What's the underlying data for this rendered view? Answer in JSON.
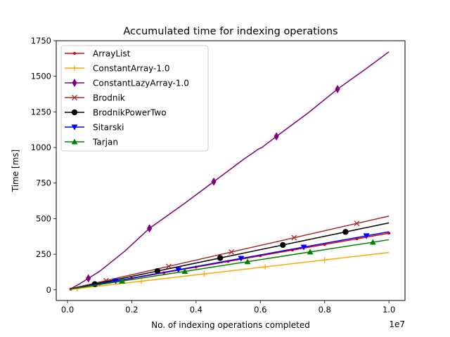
{
  "chart_data": {
    "type": "line",
    "title": "Accumulated time for indexing operations",
    "xlabel": "No. of indexing operations completed",
    "ylabel": "Time [ms]",
    "x_offset_text": "1e7",
    "xlim": [
      -0.35,
      10.5
    ],
    "ylim": [
      -75,
      1750
    ],
    "x_ticks": [
      0.0,
      0.2,
      0.4,
      0.6,
      0.8,
      1.0
    ],
    "x_tick_labels": [
      "0.0",
      "0.2",
      "0.4",
      "0.6",
      "0.8",
      "1.0"
    ],
    "y_ticks": [
      0,
      250,
      500,
      750,
      1000,
      1250,
      1500,
      1750
    ],
    "y_tick_labels": [
      "0",
      "250",
      "500",
      "750",
      "1000",
      "1250",
      "1500",
      "1750"
    ],
    "legend_position": "upper left",
    "grid": false,
    "series": [
      {
        "name": "ArrayList",
        "color": "#e00000",
        "marker": "point",
        "x": [
          0.1,
          10.0
        ],
        "y": [
          5,
          398
        ],
        "marker_x": [
          0.1,
          1.0,
          2.0,
          3.0,
          4.0,
          5.0,
          6.0,
          7.0,
          8.0,
          9.0,
          10.0
        ]
      },
      {
        "name": "ConstantArray-1.0",
        "color": "#ffa500",
        "marker": "plus",
        "x": [
          0.1,
          10.0
        ],
        "y": [
          3,
          262
        ],
        "marker_x": [
          0.3,
          2.3,
          4.25,
          6.15,
          8.0
        ]
      },
      {
        "name": "ConstantLazyArray-1.0",
        "color": "#800080",
        "marker": "thin_diamond",
        "x": [
          0.1,
          0.2,
          0.35,
          1.0,
          1.8,
          2.55,
          3.6,
          4.55,
          5.5,
          5.95,
          6.05,
          6.5,
          7.5,
          8.4,
          9.3,
          10.0
        ],
        "y": [
          8,
          20,
          38,
          130,
          275,
          432,
          600,
          760,
          920,
          990,
          1000,
          1078,
          1245,
          1410,
          1555,
          1672
        ],
        "marker_x": [
          0.65,
          2.55,
          4.55,
          6.5,
          8.4
        ]
      },
      {
        "name": "Brodnik",
        "color": "#a52a2a",
        "marker": "x",
        "x": [
          0.1,
          10.0
        ],
        "y": [
          8,
          518
        ],
        "marker_x": [
          1.2,
          3.15,
          5.1,
          7.05,
          9.0
        ]
      },
      {
        "name": "BrodnikPowerTwo",
        "color": "#000000",
        "marker": "circle",
        "x": [
          0.1,
          10.0
        ],
        "y": [
          5,
          470
        ],
        "marker_x": [
          0.85,
          2.8,
          4.75,
          6.7,
          8.65
        ]
      },
      {
        "name": "Sitarski",
        "color": "#0000ff",
        "marker": "triangle_down",
        "x": [
          0.1,
          10.0
        ],
        "y": [
          5,
          408
        ],
        "marker_x": [
          1.5,
          3.45,
          5.4,
          7.35,
          9.3
        ]
      },
      {
        "name": "Tarjan",
        "color": "#008000",
        "marker": "triangle_up",
        "x": [
          0.1,
          10.0
        ],
        "y": [
          5,
          352
        ],
        "marker_x": [
          1.7,
          3.65,
          5.6,
          7.55,
          9.5
        ]
      }
    ]
  }
}
